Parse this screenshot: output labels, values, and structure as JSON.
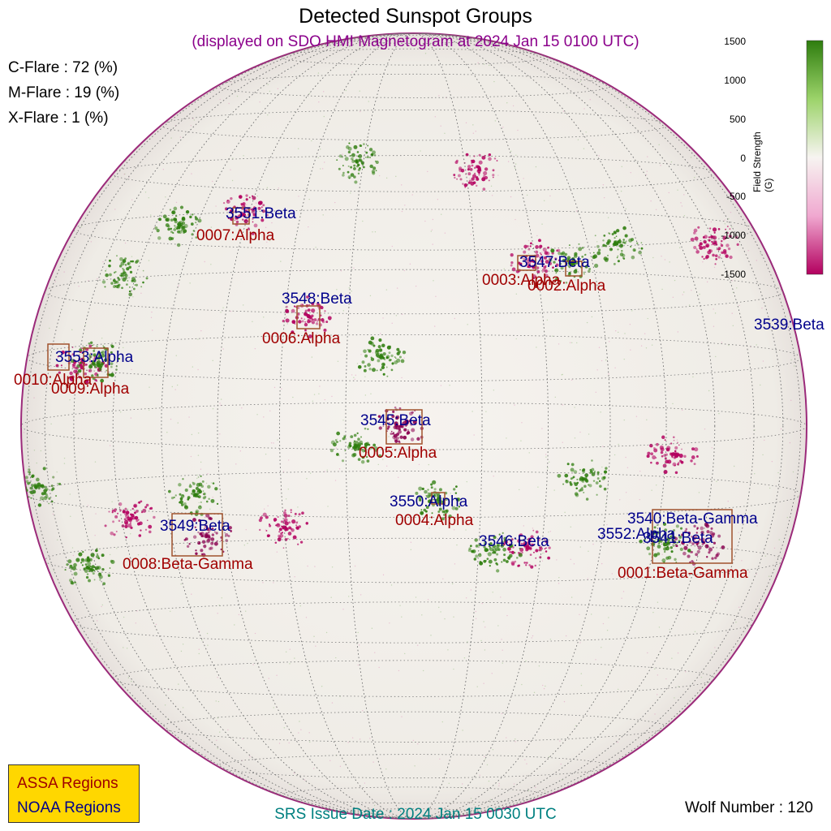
{
  "title": "Detected Sunspot Groups",
  "subtitle": "(displayed on SDO HMI Magnetogram at 2024 Jan 15 0100 UTC)",
  "flare_probabilities": [
    {
      "label": "C-Flare : 72 (%)"
    },
    {
      "label": "M-Flare : 19 (%)"
    },
    {
      "label": "X-Flare :  1 (%)"
    }
  ],
  "colorbar": {
    "label": "Field Strength (G)",
    "ticks": [
      "1500",
      "1000",
      "500",
      "0",
      "-500",
      "-1000",
      "-1500"
    ],
    "range": [
      -1500,
      1500
    ],
    "colors": [
      "#b3005f",
      "#f7f4f1",
      "#2e7d0e"
    ]
  },
  "legend": {
    "assa_label": "ASSA Regions",
    "noaa_label": "NOAA Regions",
    "background": "#ffd700"
  },
  "srs_issue": "SRS Issue Date : 2024 Jan 15 0030 UTC",
  "wolf_number": "Wolf Number : 120",
  "colors": {
    "assa": "#a00000",
    "noaa": "#00008b",
    "subtitle": "#8b008b",
    "srs": "#008080",
    "box": "#a0522d"
  },
  "noaa_regions": [
    {
      "label": "3551:Beta"
    },
    {
      "label": "3547:Beta"
    },
    {
      "label": "3548:Beta"
    },
    {
      "label": "3539:Beta"
    },
    {
      "label": "3553:Alpha"
    },
    {
      "label": "3545:Beta"
    },
    {
      "label": "3550:Alpha"
    },
    {
      "label": "3540:Beta-Gamma"
    },
    {
      "label": "3549:Beta"
    },
    {
      "label": "3552:Alpha"
    },
    {
      "label": "3541:Beta"
    },
    {
      "label": "3546:Beta"
    }
  ],
  "assa_regions": [
    {
      "label": "0007:Alpha"
    },
    {
      "label": "0003:Alpha"
    },
    {
      "label": "0002:Alpha"
    },
    {
      "label": "0006:Alpha"
    },
    {
      "label": "0010:Alpha"
    },
    {
      "label": "0009:Alpha"
    },
    {
      "label": "0005:Alpha"
    },
    {
      "label": "0004:Alpha"
    },
    {
      "label": "0008:Beta-Gamma"
    },
    {
      "label": "0001:Beta-Gamma"
    }
  ]
}
